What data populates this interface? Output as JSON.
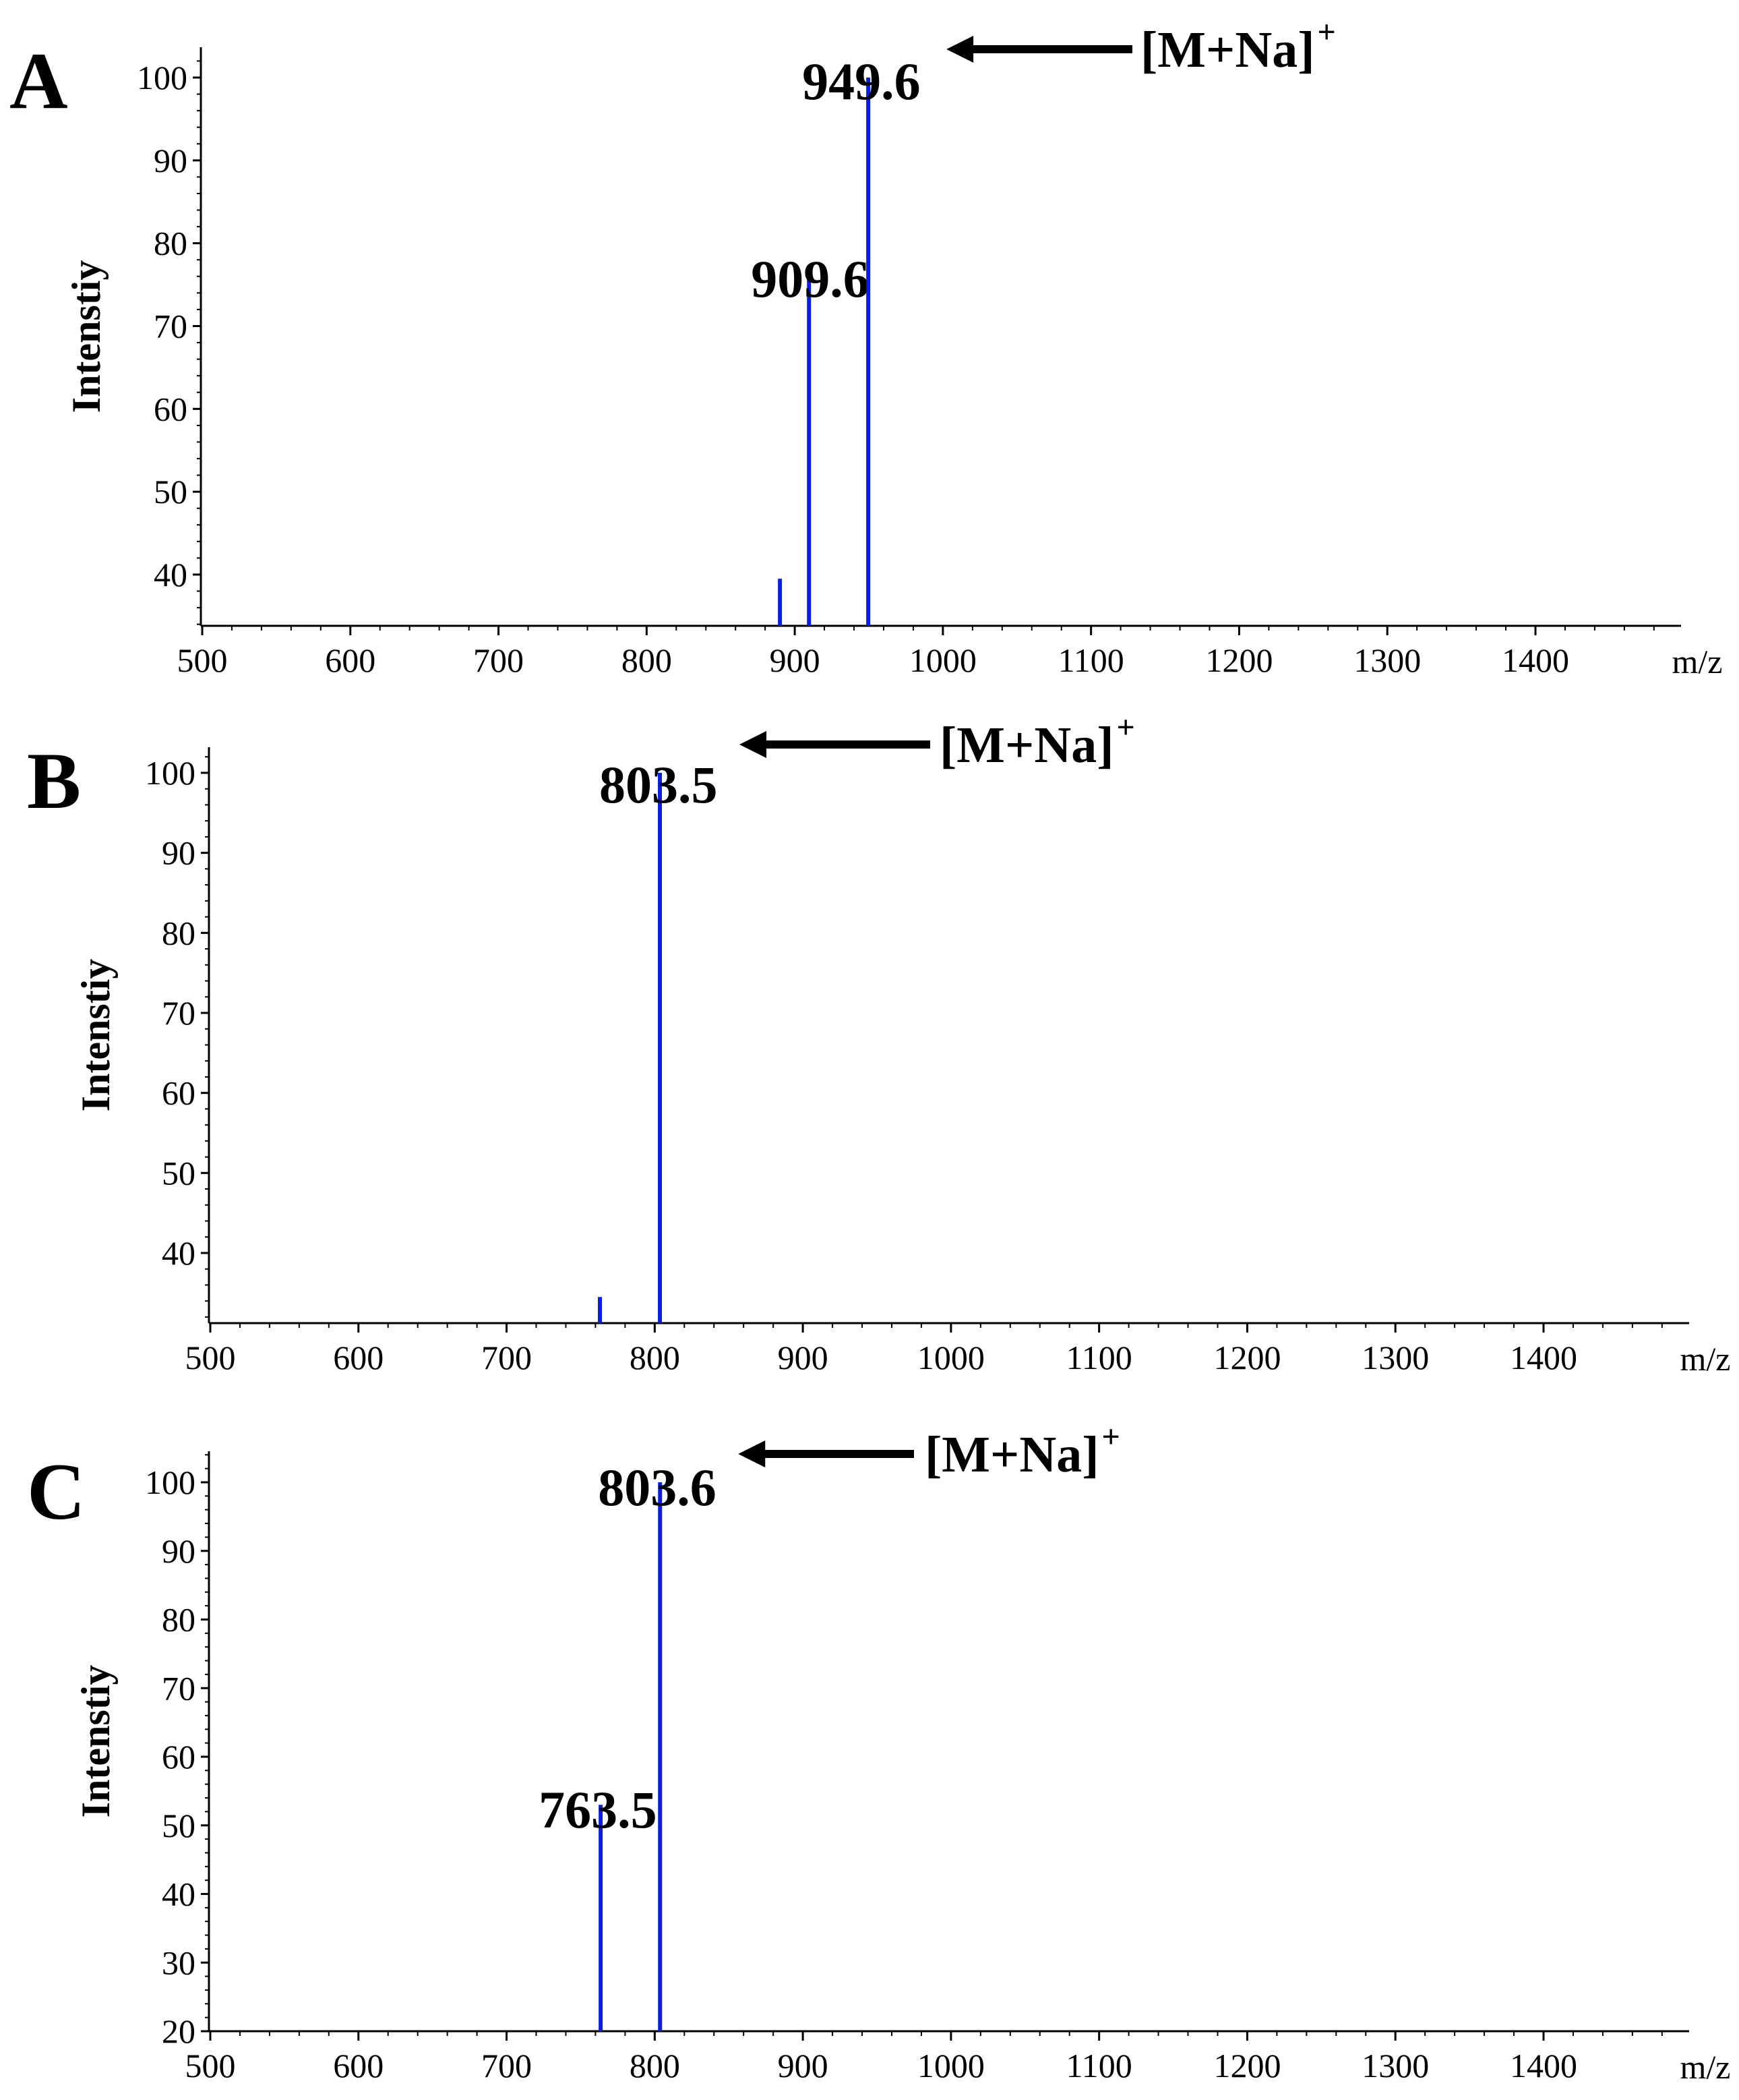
{
  "chart_data": [
    {
      "type": "bar",
      "panel": "A",
      "xlabel": "m/z",
      "ylabel": "Intenstiy",
      "xlim": [
        500,
        1500
      ],
      "ylim": [
        34,
        103
      ],
      "xticks": [
        500,
        600,
        700,
        800,
        900,
        1000,
        1100,
        1200,
        1300,
        1400
      ],
      "yticks": [
        40,
        50,
        60,
        70,
        80,
        90,
        100
      ],
      "peaks": [
        {
          "mz": 890,
          "intensity": 39.5
        },
        {
          "mz": 909.6,
          "intensity": 76,
          "label": "909.6"
        },
        {
          "mz": 949.6,
          "intensity": 100,
          "label": "949.6"
        }
      ],
      "annotation": {
        "text": "[M+Na]",
        "superscript": "+",
        "target_mz": 949.6
      }
    },
    {
      "type": "bar",
      "panel": "B",
      "xlabel": "m/z",
      "ylabel": "Intenstiy",
      "xlim": [
        500,
        1500
      ],
      "ylim": [
        31,
        103
      ],
      "xticks": [
        500,
        600,
        700,
        800,
        900,
        1000,
        1100,
        1200,
        1300,
        1400
      ],
      "yticks": [
        40,
        50,
        60,
        70,
        80,
        90,
        100
      ],
      "peaks": [
        {
          "mz": 763,
          "intensity": 34.5
        },
        {
          "mz": 803.5,
          "intensity": 100,
          "label": "803.5"
        }
      ],
      "annotation": {
        "text": "[M+Na]",
        "superscript": "+",
        "target_mz": 803.5
      }
    },
    {
      "type": "bar",
      "panel": "C",
      "xlabel": "m/z",
      "ylabel": "Intenstiy",
      "xlim": [
        500,
        1500
      ],
      "ylim": [
        19.5,
        104
      ],
      "xticks": [
        500,
        600,
        700,
        800,
        900,
        1000,
        1100,
        1200,
        1300,
        1400
      ],
      "yticks": [
        20,
        30,
        40,
        50,
        60,
        70,
        80,
        90,
        100
      ],
      "peaks": [
        {
          "mz": 763.5,
          "intensity": 53,
          "label": "763.5"
        },
        {
          "mz": 803.6,
          "intensity": 100,
          "label": "803.6"
        }
      ],
      "annotation": {
        "text": "[M+Na]",
        "superscript": "+",
        "target_mz": 803.6
      }
    }
  ],
  "colors": {
    "peak": "#0a1ee0",
    "axis": "#000000",
    "text": "#000000"
  }
}
